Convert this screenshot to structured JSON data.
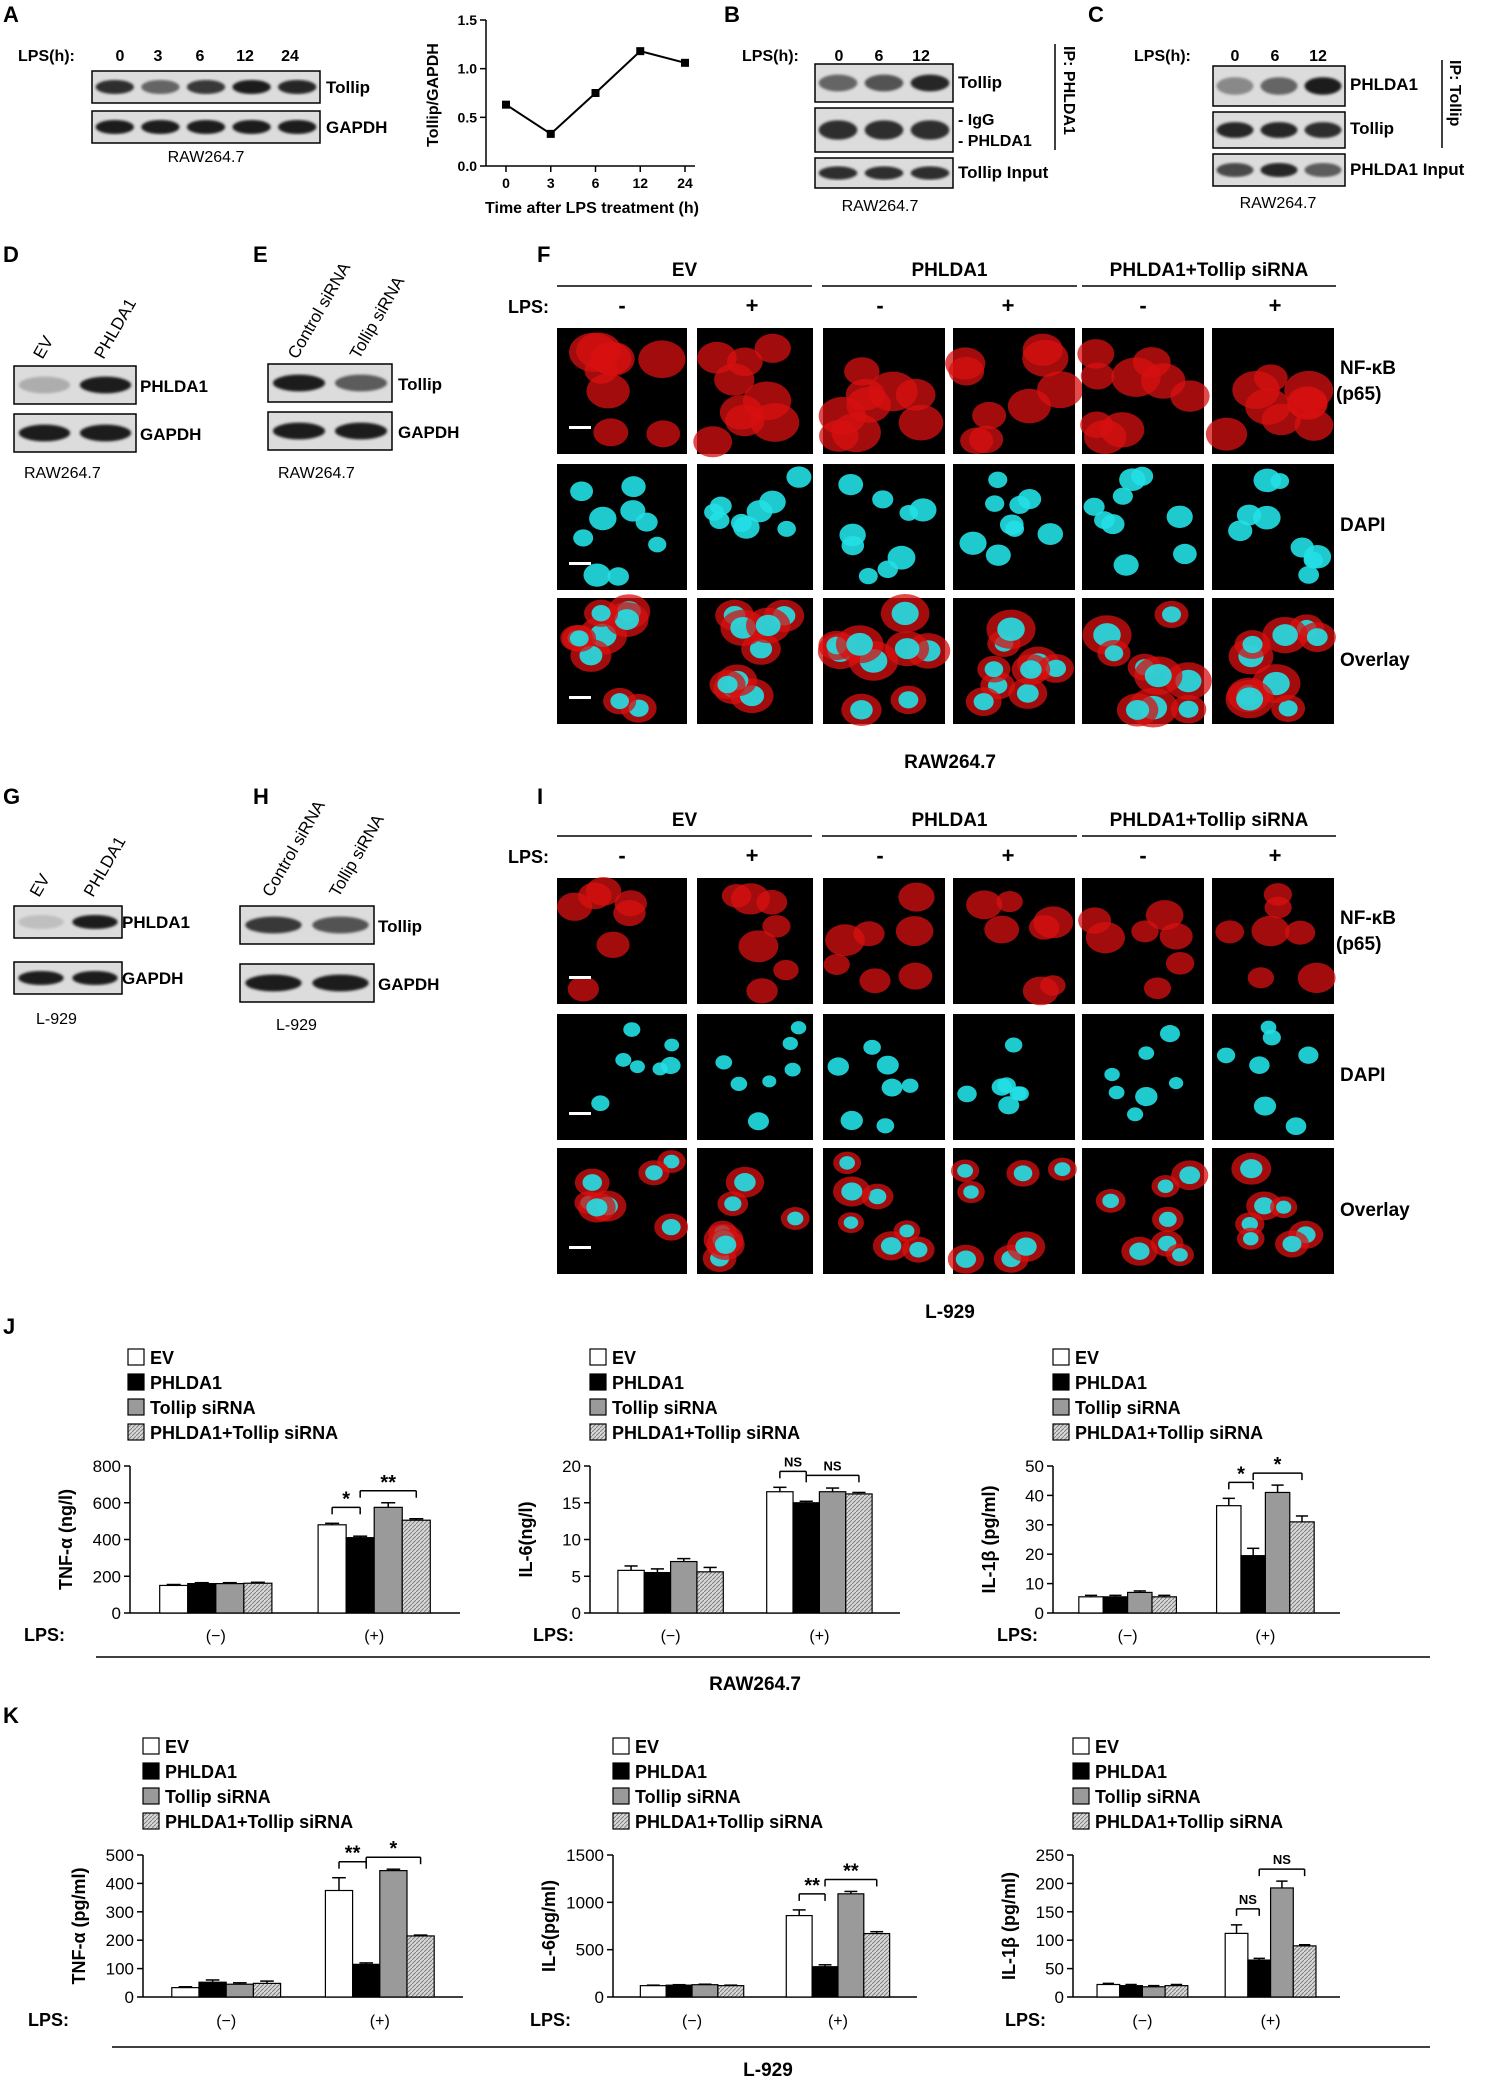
{
  "panels": [
    {
      "letter": "A"
    },
    {
      "letter": "B"
    },
    {
      "letter": "C"
    },
    {
      "letter": "D"
    },
    {
      "letter": "E"
    },
    {
      "letter": "F"
    },
    {
      "letter": "G"
    },
    {
      "letter": "H"
    },
    {
      "letter": "I"
    },
    {
      "letter": "J"
    },
    {
      "letter": "K"
    }
  ],
  "blot_A": {
    "lps_label": "LPS(h):",
    "timepoints": [
      "0",
      "3",
      "6",
      "12",
      "24"
    ],
    "rows": [
      "Tollip",
      "GAPDH"
    ],
    "cell_line": "RAW264.7"
  },
  "blot_B": {
    "lps_label": "LPS(h):",
    "timepoints": [
      "0",
      "6",
      "12"
    ],
    "rows": [
      "Tollip",
      "- IgG",
      "- PHLDA1",
      "Tollip Input"
    ],
    "ip_label": "IP: PHLDA1",
    "cell_line": "RAW264.7"
  },
  "blot_C": {
    "lps_label": "LPS(h):",
    "timepoints": [
      "0",
      "6",
      "12"
    ],
    "rows": [
      "PHLDA1",
      "Tollip",
      "PHLDA1 Input"
    ],
    "ip_label": "IP: Tollip",
    "cell_line": "RAW264.7"
  },
  "blot_D": {
    "lanes": [
      "EV",
      "PHLDA1"
    ],
    "rows": [
      "PHLDA1",
      "GAPDH"
    ],
    "cell_line": "RAW264.7"
  },
  "blot_E": {
    "lanes": [
      "Control siRNA",
      "Tollip siRNA"
    ],
    "rows": [
      "Tollip",
      "GAPDH"
    ],
    "cell_line": "RAW264.7"
  },
  "blot_G": {
    "lanes": [
      "EV",
      "PHLDA1"
    ],
    "rows": [
      "PHLDA1",
      "GAPDH"
    ],
    "cell_line": "L-929"
  },
  "blot_H": {
    "lanes": [
      "Control siRNA",
      "Tollip siRNA"
    ],
    "rows": [
      "Tollip",
      "GAPDH"
    ],
    "cell_line": "L-929"
  },
  "micro_F": {
    "groups": [
      "EV",
      "PHLDA1",
      "PHLDA1+Tollip siRNA"
    ],
    "lps_label": "LPS:",
    "signs": [
      "-",
      "+",
      "-",
      "+",
      "-",
      "+"
    ],
    "rows": [
      "NF-κB",
      "(p65)",
      "DAPI",
      "Overlay"
    ],
    "cell_line": "RAW264.7"
  },
  "micro_I": {
    "groups": [
      "EV",
      "PHLDA1",
      "PHLDA1+Tollip siRNA"
    ],
    "lps_label": "LPS:",
    "signs": [
      "-",
      "+",
      "-",
      "+",
      "-",
      "+"
    ],
    "rows": [
      "NF-κB",
      "(p65)",
      "DAPI",
      "Overlay"
    ],
    "cell_line": "L-929"
  },
  "legend_items": [
    "EV",
    "PHLDA1",
    "Tollip siRNA",
    "PHLDA1+Tollip siRNA"
  ],
  "group_labels": [
    "(−)",
    "(+)"
  ],
  "lps_label": "LPS:",
  "cell_line_J": "RAW264.7",
  "cell_line_K": "L-929",
  "colors": {
    "ev": "#ffffff",
    "phlda1": "#000000",
    "tollip": "#9a9a9a",
    "combo": "#d4d4d4",
    "red": "#d81010",
    "cyan": "#22e0e6"
  },
  "chart_data": [
    {
      "panel": "A",
      "type": "line",
      "x": [
        "0",
        "3",
        "6",
        "12",
        "24"
      ],
      "values": [
        0.63,
        0.33,
        0.75,
        1.18,
        1.06
      ],
      "xlabel": "Time after LPS treatment (h)",
      "ylabel": "Tollip/GAPDH",
      "ylim": [
        0,
        1.5
      ],
      "yticks": [
        "0.0",
        "0.5",
        "1.0",
        "1.5"
      ]
    },
    {
      "panel": "J1",
      "type": "bar",
      "ylabel": "TNF-α (ng/l)",
      "ylim": [
        0,
        800
      ],
      "yticks": [
        "0",
        "200",
        "400",
        "600",
        "800"
      ],
      "categories": [
        "(−)",
        "(+)"
      ],
      "series": [
        {
          "name": "EV",
          "values": [
            150,
            480
          ]
        },
        {
          "name": "PHLDA1",
          "values": [
            160,
            410
          ]
        },
        {
          "name": "Tollip siRNA",
          "values": [
            160,
            575
          ]
        },
        {
          "name": "PHLDA1+Tollip siRNA",
          "values": [
            162,
            505
          ]
        }
      ],
      "errors": [
        [
          5,
          8
        ],
        [
          5,
          8
        ],
        [
          5,
          25
        ],
        [
          5,
          8
        ]
      ],
      "annotations": [
        {
          "from": 0,
          "to": 1,
          "text": "*"
        },
        {
          "from": 1,
          "to": 3,
          "text": "**"
        }
      ]
    },
    {
      "panel": "J2",
      "type": "bar",
      "ylabel": "IL-6(ng/l)",
      "ylim": [
        0,
        20
      ],
      "yticks": [
        "0",
        "5",
        "10",
        "15",
        "20"
      ],
      "categories": [
        "(−)",
        "(+)"
      ],
      "series": [
        {
          "name": "EV",
          "values": [
            5.8,
            16.5
          ]
        },
        {
          "name": "PHLDA1",
          "values": [
            5.5,
            15.0
          ]
        },
        {
          "name": "Tollip siRNA",
          "values": [
            7.0,
            16.5
          ]
        },
        {
          "name": "PHLDA1+Tollip siRNA",
          "values": [
            5.6,
            16.2
          ]
        }
      ],
      "errors": [
        [
          0.6,
          0.6
        ],
        [
          0.5,
          0.2
        ],
        [
          0.4,
          0.5
        ],
        [
          0.6,
          0.2
        ]
      ],
      "annotations": [
        {
          "from": 0,
          "to": 1,
          "text": "NS"
        },
        {
          "from": 1,
          "to": 3,
          "text": "NS"
        }
      ]
    },
    {
      "panel": "J3",
      "type": "bar",
      "ylabel": "IL-1β (pg/ml)",
      "ylim": [
        0,
        50
      ],
      "yticks": [
        "0",
        "10",
        "20",
        "30",
        "40",
        "50"
      ],
      "categories": [
        "(−)",
        "(+)"
      ],
      "series": [
        {
          "name": "EV",
          "values": [
            5.5,
            36.5
          ]
        },
        {
          "name": "PHLDA1",
          "values": [
            5.5,
            19.5
          ]
        },
        {
          "name": "Tollip siRNA",
          "values": [
            7.0,
            41.0
          ]
        },
        {
          "name": "PHLDA1+Tollip siRNA",
          "values": [
            5.5,
            31.0
          ]
        }
      ],
      "errors": [
        [
          0.5,
          2.5
        ],
        [
          0.5,
          2.5
        ],
        [
          0.5,
          2.5
        ],
        [
          0.5,
          2.0
        ]
      ],
      "annotations": [
        {
          "from": 0,
          "to": 1,
          "text": "*"
        },
        {
          "from": 1,
          "to": 3,
          "text": "*"
        }
      ]
    },
    {
      "panel": "K1",
      "type": "bar",
      "ylabel": "TNF-α (pg/ml)",
      "ylim": [
        0,
        500
      ],
      "yticks": [
        "0",
        "100",
        "200",
        "300",
        "400",
        "500"
      ],
      "categories": [
        "(−)",
        "(+)"
      ],
      "series": [
        {
          "name": "EV",
          "values": [
            33,
            375
          ]
        },
        {
          "name": "PHLDA1",
          "values": [
            52,
            115
          ]
        },
        {
          "name": "Tollip siRNA",
          "values": [
            45,
            445
          ]
        },
        {
          "name": "PHLDA1+Tollip siRNA",
          "values": [
            48,
            215
          ]
        }
      ],
      "errors": [
        [
          3,
          45
        ],
        [
          8,
          5
        ],
        [
          5,
          5
        ],
        [
          8,
          3
        ]
      ],
      "annotations": [
        {
          "from": 0,
          "to": 1,
          "text": "**"
        },
        {
          "from": 1,
          "to": 3,
          "text": "*"
        }
      ]
    },
    {
      "panel": "K2",
      "type": "bar",
      "ylabel": "IL-6(pg/ml)",
      "ylim": [
        0,
        1500
      ],
      "yticks": [
        "0",
        "500",
        "1000",
        "1500"
      ],
      "categories": [
        "(−)",
        "(+)"
      ],
      "series": [
        {
          "name": "EV",
          "values": [
            120,
            860
          ]
        },
        {
          "name": "PHLDA1",
          "values": [
            125,
            320
          ]
        },
        {
          "name": "Tollip siRNA",
          "values": [
            130,
            1090
          ]
        },
        {
          "name": "PHLDA1+Tollip siRNA",
          "values": [
            120,
            670
          ]
        }
      ],
      "errors": [
        [
          5,
          60
        ],
        [
          5,
          20
        ],
        [
          5,
          25
        ],
        [
          5,
          20
        ]
      ],
      "annotations": [
        {
          "from": 0,
          "to": 1,
          "text": "**"
        },
        {
          "from": 1,
          "to": 3,
          "text": "**"
        }
      ]
    },
    {
      "panel": "K3",
      "type": "bar",
      "ylabel": "IL-1β (pg/ml)",
      "ylim": [
        0,
        250
      ],
      "yticks": [
        "0",
        "50",
        "100",
        "150",
        "200",
        "250"
      ],
      "categories": [
        "(−)",
        "(+)"
      ],
      "series": [
        {
          "name": "EV",
          "values": [
            22,
            112
          ]
        },
        {
          "name": "PHLDA1",
          "values": [
            20,
            65
          ]
        },
        {
          "name": "Tollip siRNA",
          "values": [
            18,
            192
          ]
        },
        {
          "name": "PHLDA1+Tollip siRNA",
          "values": [
            20,
            90
          ]
        }
      ],
      "errors": [
        [
          2,
          15
        ],
        [
          2,
          3
        ],
        [
          2,
          12
        ],
        [
          2,
          2
        ]
      ],
      "annotations": [
        {
          "from": 0,
          "to": 1,
          "text": "NS"
        },
        {
          "from": 1,
          "to": 3,
          "text": "NS"
        }
      ]
    }
  ]
}
